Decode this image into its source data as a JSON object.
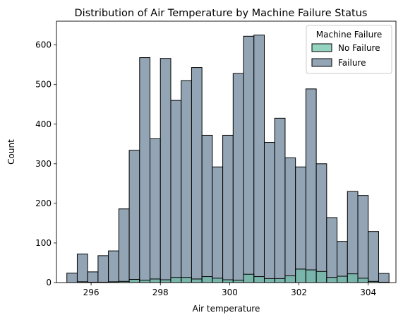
{
  "chart_data": {
    "type": "bar",
    "title": "Distribution of Air Temperature by Machine Failure Status",
    "xlabel": "Air temperature",
    "ylabel": "Count",
    "xlim": [
      295.0,
      304.8
    ],
    "ylim": [
      0,
      660
    ],
    "xticks": [
      296,
      298,
      300,
      302,
      304
    ],
    "yticks": [
      0,
      100,
      200,
      300,
      400,
      500,
      600
    ],
    "grid": false,
    "bin_edges": [
      295.3,
      295.6,
      295.9,
      296.2,
      296.5,
      296.8,
      297.1,
      297.4,
      297.7,
      298.0,
      298.3,
      298.6,
      298.9,
      299.2,
      299.5,
      299.8,
      300.1,
      300.4,
      300.7,
      301.0,
      301.3,
      301.6,
      301.9,
      302.2,
      302.5,
      302.8,
      303.1,
      303.4,
      303.7,
      304.0,
      304.3,
      304.6
    ],
    "legend": {
      "title": "Machine Failure",
      "placement": "top-right",
      "entries": [
        "No Failure",
        "Failure"
      ]
    },
    "series": [
      {
        "name": "No Failure",
        "color": "#66c2a5",
        "values": [
          0,
          2,
          1,
          1,
          2,
          3,
          8,
          6,
          9,
          7,
          13,
          13,
          9,
          15,
          11,
          7,
          6,
          21,
          15,
          10,
          10,
          17,
          34,
          32,
          28,
          13,
          16,
          22,
          11,
          3,
          1
        ]
      },
      {
        "name": "Failure",
        "color": "#8da0b0",
        "values": [
          24,
          72,
          27,
          68,
          80,
          186,
          334,
          568,
          363,
          566,
          460,
          510,
          543,
          372,
          292,
          372,
          528,
          622,
          625,
          354,
          415,
          315,
          292,
          489,
          300,
          164,
          104,
          230,
          220,
          129,
          23
        ]
      }
    ]
  }
}
